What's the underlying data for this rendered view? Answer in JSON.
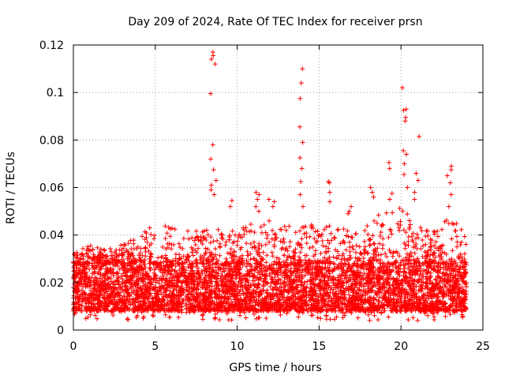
{
  "chart_data": {
    "type": "scatter",
    "title": "Day 209 of 2024, Rate Of TEC Index for receiver prsn",
    "xlabel": "GPS time / hours",
    "ylabel": "ROTI / TECUs",
    "xlim": [
      0,
      25
    ],
    "ylim": [
      0,
      0.12
    ],
    "xticks": [
      0,
      5,
      10,
      15,
      20,
      25
    ],
    "yticks": [
      0,
      0.02,
      0.04,
      0.06,
      0.08,
      0.1,
      0.12
    ],
    "xtick_labels": [
      "0",
      "5",
      "10",
      "15",
      "20",
      "25"
    ],
    "ytick_labels": [
      "0",
      "0.02",
      "0.04",
      "0.06",
      "0.08",
      "0.1",
      "0.12"
    ],
    "grid": true,
    "marker": "+",
    "color": "#ff0000",
    "bulk_band": {
      "x_range": [
        0,
        24
      ],
      "typical_range": [
        0.008,
        0.028
      ],
      "upper_envelope": [
        [
          0,
          0.032
        ],
        [
          1,
          0.036
        ],
        [
          2,
          0.034
        ],
        [
          3,
          0.036
        ],
        [
          4,
          0.04
        ],
        [
          5,
          0.046
        ],
        [
          6,
          0.044
        ],
        [
          7,
          0.042
        ],
        [
          8,
          0.044
        ],
        [
          9,
          0.042
        ],
        [
          10,
          0.042
        ],
        [
          11,
          0.046
        ],
        [
          12,
          0.046
        ],
        [
          13,
          0.044
        ],
        [
          14,
          0.046
        ],
        [
          15,
          0.044
        ],
        [
          16,
          0.044
        ],
        [
          17,
          0.042
        ],
        [
          18,
          0.046
        ],
        [
          19,
          0.05
        ],
        [
          20,
          0.052
        ],
        [
          21,
          0.044
        ],
        [
          22,
          0.042
        ],
        [
          23,
          0.05
        ],
        [
          24,
          0.04
        ]
      ]
    },
    "peaks": [
      {
        "x": 8.55,
        "values": [
          0.117,
          0.1155,
          0.114,
          0.112,
          0.0995,
          0.078,
          0.072,
          0.0675,
          0.063,
          0.061,
          0.059,
          0.057
        ]
      },
      {
        "x": 13.85,
        "values": [
          0.11,
          0.104,
          0.0975,
          0.0855,
          0.079,
          0.0725,
          0.068,
          0.0625,
          0.057,
          0.052
        ]
      },
      {
        "x": 20.25,
        "values": [
          0.102,
          0.093,
          0.0925,
          0.0895,
          0.088,
          0.0755,
          0.074,
          0.07,
          0.0655,
          0.06
        ]
      },
      {
        "x": 21.0,
        "values": [
          0.0815,
          0.066,
          0.063,
          0.058,
          0.055
        ]
      },
      {
        "x": 22.9,
        "values": [
          0.069,
          0.0675,
          0.065,
          0.062,
          0.057,
          0.052
        ]
      },
      {
        "x": 11.2,
        "values": [
          0.058,
          0.057,
          0.055,
          0.052,
          0.05
        ]
      },
      {
        "x": 12.1,
        "values": [
          0.055,
          0.054,
          0.052
        ]
      },
      {
        "x": 15.5,
        "values": [
          0.0625,
          0.062,
          0.058,
          0.054
        ]
      },
      {
        "x": 18.2,
        "values": [
          0.06,
          0.058,
          0.056
        ]
      },
      {
        "x": 19.35,
        "values": [
          0.0705,
          0.068,
          0.0575,
          0.055
        ]
      },
      {
        "x": 16.8,
        "values": [
          0.052,
          0.05,
          0.049
        ]
      },
      {
        "x": 9.6,
        "values": [
          0.0545,
          0.052
        ]
      }
    ]
  }
}
